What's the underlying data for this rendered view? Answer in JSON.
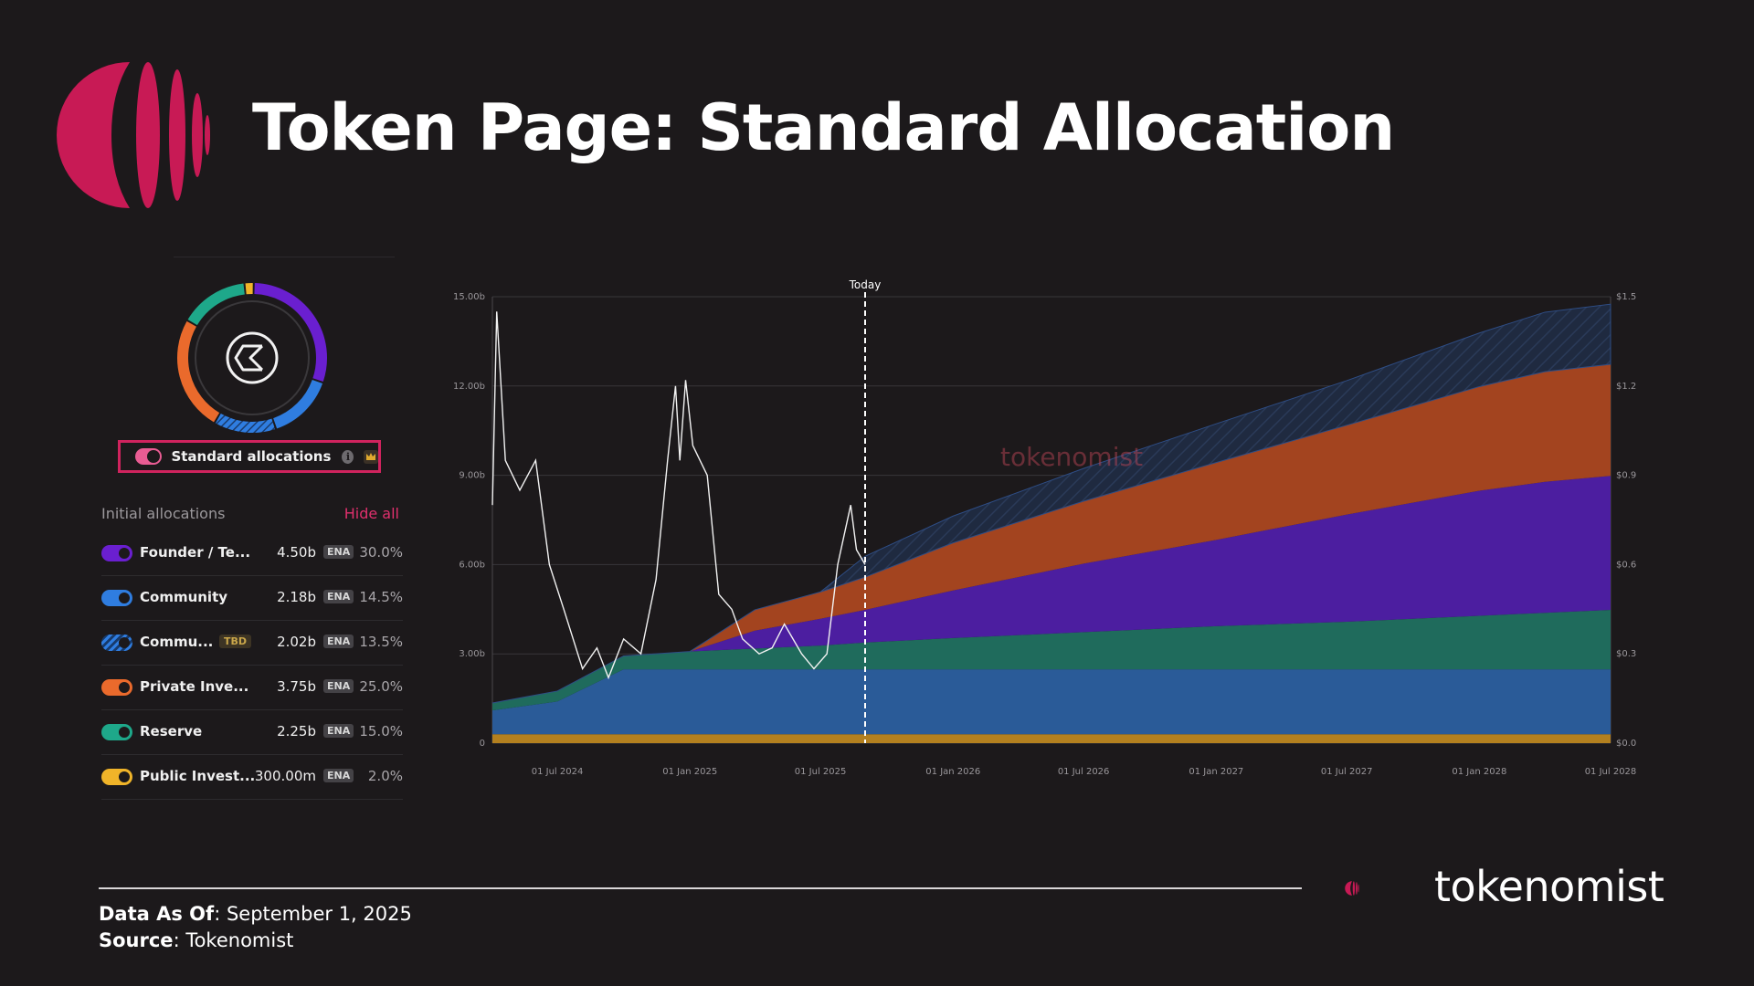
{
  "header": {
    "title": "Token Page: Standard Allocation"
  },
  "panel": {
    "toggle_label": "Standard allocations",
    "info_icon": "i",
    "allocations_label": "Initial allocations",
    "hide_all": "Hide all",
    "items": [
      {
        "name": "Founder / Te...",
        "amount": "4.50b",
        "unit": "ENA",
        "percent": "30.0%",
        "color": "#6a1fd0",
        "tbd": ""
      },
      {
        "name": "Community",
        "amount": "2.18b",
        "unit": "ENA",
        "percent": "14.5%",
        "color": "#2f7de0",
        "tbd": ""
      },
      {
        "name": "Commu...",
        "amount": "2.02b",
        "unit": "ENA",
        "percent": "13.5%",
        "color": "#2f7de0",
        "tbd": "TBD"
      },
      {
        "name": "Private Inve...",
        "amount": "3.75b",
        "unit": "ENA",
        "percent": "25.0%",
        "color": "#ea6a2c",
        "tbd": ""
      },
      {
        "name": "Reserve",
        "amount": "2.25b",
        "unit": "ENA",
        "percent": "15.0%",
        "color": "#1ea88a",
        "tbd": ""
      },
      {
        "name": "Public Invest...",
        "amount": "300.00m",
        "unit": "ENA",
        "percent": "2.0%",
        "color": "#f0b429",
        "tbd": ""
      }
    ]
  },
  "chart_data": {
    "type": "area",
    "today_label": "Today",
    "watermark": "tokenomist",
    "x_ticks": [
      "01 Jul 2024",
      "01 Jan 2025",
      "01 Jul 2025",
      "01 Jan 2026",
      "01 Jul 2026",
      "01 Jan 2027",
      "01 Jul 2027",
      "01 Jan 2028",
      "01 Jul 2028"
    ],
    "y_left_ticks": [
      "0",
      "3.00b",
      "6.00b",
      "9.00b",
      "12.00b",
      "15.00b"
    ],
    "y_right_ticks": [
      "$0.0",
      "$0.3",
      "$0.6",
      "$0.9",
      "$1.2",
      "$1.5"
    ],
    "x": [
      "2024-04-02",
      "2024-07-01",
      "2024-10-01",
      "2025-01-01",
      "2025-04-01",
      "2025-07-01",
      "2025-09-01",
      "2026-01-01",
      "2026-07-01",
      "2027-01-01",
      "2027-07-01",
      "2028-01-01",
      "2028-04-01",
      "2028-07-01"
    ],
    "ylim": [
      0,
      15
    ],
    "y_unit": "b ENA",
    "series": [
      {
        "name": "Public Invest...",
        "color": "#b3801f",
        "values": [
          0.3,
          0.3,
          0.3,
          0.3,
          0.3,
          0.3,
          0.3,
          0.3,
          0.3,
          0.3,
          0.3,
          0.3,
          0.3,
          0.3
        ]
      },
      {
        "name": "Community",
        "color": "#2a5b98",
        "values": [
          0.8,
          1.1,
          2.18,
          2.18,
          2.18,
          2.18,
          2.18,
          2.18,
          2.18,
          2.18,
          2.18,
          2.18,
          2.18,
          2.18
        ]
      },
      {
        "name": "Reserve",
        "color": "#1f6b5c",
        "values": [
          0.25,
          0.35,
          0.45,
          0.6,
          0.7,
          0.8,
          0.9,
          1.05,
          1.25,
          1.45,
          1.6,
          1.8,
          1.9,
          2.0
        ]
      },
      {
        "name": "Founder / Te...",
        "color": "#4c1ea0",
        "values": [
          0,
          0,
          0,
          0,
          0.6,
          0.9,
          1.1,
          1.6,
          2.3,
          2.9,
          3.6,
          4.2,
          4.4,
          4.5
        ]
      },
      {
        "name": "Private Inve...",
        "color": "#a3441f",
        "values": [
          0,
          0,
          0,
          0,
          0.7,
          0.9,
          1.1,
          1.6,
          2.1,
          2.6,
          3.0,
          3.5,
          3.7,
          3.75
        ]
      },
      {
        "name": "Commu...",
        "color": "#1f2b44",
        "hatched": true,
        "values": [
          0,
          0,
          0,
          0,
          0,
          0,
          0.7,
          0.9,
          1.1,
          1.3,
          1.5,
          1.8,
          2.0,
          2.02
        ]
      }
    ],
    "price": {
      "ylim": [
        0,
        1.5
      ],
      "points": [
        [
          "2024-04-02",
          0.8
        ],
        [
          "2024-04-08",
          1.45
        ],
        [
          "2024-04-20",
          0.95
        ],
        [
          "2024-05-10",
          0.85
        ],
        [
          "2024-06-01",
          0.95
        ],
        [
          "2024-06-20",
          0.6
        ],
        [
          "2024-07-10",
          0.45
        ],
        [
          "2024-08-05",
          0.25
        ],
        [
          "2024-08-25",
          0.32
        ],
        [
          "2024-09-10",
          0.22
        ],
        [
          "2024-10-01",
          0.35
        ],
        [
          "2024-10-25",
          0.3
        ],
        [
          "2024-11-15",
          0.55
        ],
        [
          "2024-12-01",
          0.95
        ],
        [
          "2024-12-12",
          1.2
        ],
        [
          "2024-12-18",
          0.95
        ],
        [
          "2024-12-26",
          1.22
        ],
        [
          "2025-01-05",
          1.0
        ],
        [
          "2025-01-25",
          0.9
        ],
        [
          "2025-02-10",
          0.5
        ],
        [
          "2025-02-28",
          0.45
        ],
        [
          "2025-03-15",
          0.35
        ],
        [
          "2025-04-07",
          0.3
        ],
        [
          "2025-04-25",
          0.32
        ],
        [
          "2025-05-12",
          0.4
        ],
        [
          "2025-06-05",
          0.3
        ],
        [
          "2025-06-22",
          0.25
        ],
        [
          "2025-07-10",
          0.3
        ],
        [
          "2025-07-25",
          0.6
        ],
        [
          "2025-08-12",
          0.8
        ],
        [
          "2025-08-20",
          0.65
        ],
        [
          "2025-09-01",
          0.6
        ]
      ]
    },
    "grid": true
  },
  "footer": {
    "data_as_of_label": "Data As Of",
    "data_as_of": ": September 1, 2025",
    "source_label": "Source",
    "source": ": Tokenomist"
  },
  "brand": {
    "name": "tokenomist"
  },
  "colors": {
    "accent": "#d0235e",
    "background": "#1c191b"
  }
}
